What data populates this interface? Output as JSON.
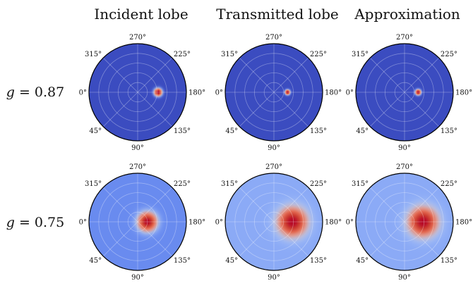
{
  "chart_data": {
    "type": "heatmap",
    "subtype": "polar",
    "columns": [
      "Incident lobe",
      "Transmitted lobe",
      "Approximation"
    ],
    "rows": [
      {
        "label_var": "g",
        "label_op": " = ",
        "label_val": "0.87"
      },
      {
        "label_var": "g",
        "label_op": " = ",
        "label_val": "0.75"
      }
    ],
    "angular_ticks": [
      "270°",
      "225°",
      "180°",
      "135°",
      "90°",
      "45°",
      "0°",
      "315°"
    ],
    "grid": true,
    "colormap": [
      "#3b4cc0",
      "#6688ee",
      "#aac7fd",
      "#dddddd",
      "#f6a385",
      "#e7745b",
      "#d04433",
      "#b40426"
    ],
    "panels": [
      [
        {
          "peak_angle_deg": 180,
          "peak_radius": 0.42,
          "lobe_width": 0.07,
          "background": 0.0
        },
        {
          "peak_angle_deg": 180,
          "peak_radius": 0.28,
          "lobe_width": 0.045,
          "background": 0.0
        },
        {
          "peak_angle_deg": 180,
          "peak_radius": 0.28,
          "lobe_width": 0.05,
          "background": 0.0
        }
      ],
      [
        {
          "peak_angle_deg": 180,
          "peak_radius": 0.2,
          "lobe_width": 0.16,
          "background": 0.15
        },
        {
          "peak_angle_deg": 180,
          "peak_radius": 0.38,
          "lobe_width": 0.24,
          "background": 0.22
        },
        {
          "peak_angle_deg": 180,
          "peak_radius": 0.38,
          "lobe_width": 0.24,
          "background": 0.22
        }
      ]
    ]
  }
}
